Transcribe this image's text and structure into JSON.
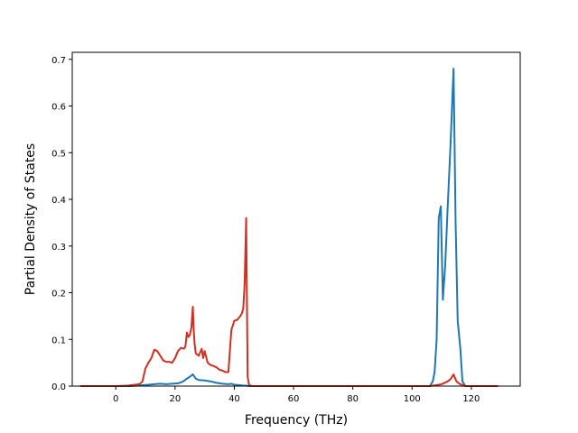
{
  "chart_data": {
    "type": "line",
    "title": "",
    "xlabel": "Frequency (THz)",
    "ylabel": "Partial Density of States",
    "xlim": [
      -14.7,
      136.5
    ],
    "ylim": [
      0,
      0.715
    ],
    "xticks": [
      0,
      20,
      40,
      60,
      80,
      100,
      120
    ],
    "yticks": [
      0.0,
      0.1,
      0.2,
      0.3,
      0.4,
      0.5,
      0.6,
      0.7
    ],
    "xtick_labels": [
      "0",
      "20",
      "40",
      "60",
      "80",
      "100",
      "120"
    ],
    "ytick_labels": [
      "0.0",
      "0.1",
      "0.2",
      "0.3",
      "0.4",
      "0.5",
      "0.6",
      "0.7"
    ],
    "grid": false,
    "legend": "none",
    "series": [
      {
        "color": "#1f77b4",
        "x": [
          -12,
          0,
          5,
          9,
          11,
          13,
          15,
          17,
          19,
          21,
          22,
          23,
          24,
          25,
          26,
          27,
          28,
          30,
          32,
          34,
          36,
          38,
          39,
          40,
          42,
          43,
          44,
          45,
          46,
          60,
          80,
          100,
          106,
          107,
          107.6,
          108.3,
          109,
          109.7,
          110.4,
          111.2,
          112,
          113,
          114,
          114.7,
          115.4,
          116.3,
          117,
          118,
          122,
          129
        ],
        "y": [
          0,
          0,
          0,
          0.002,
          0.003,
          0.004,
          0.005,
          0.004,
          0.005,
          0.006,
          0.008,
          0.011,
          0.016,
          0.02,
          0.025,
          0.016,
          0.013,
          0.012,
          0.01,
          0.007,
          0.005,
          0.004,
          0.005,
          0.003,
          0.002,
          0.001,
          0.001,
          0,
          0,
          0,
          0,
          0,
          0,
          0.01,
          0.03,
          0.1,
          0.36,
          0.385,
          0.185,
          0.26,
          0.38,
          0.52,
          0.68,
          0.35,
          0.14,
          0.08,
          0.01,
          0,
          0,
          0
        ]
      },
      {
        "color": "#d12f1f",
        "x": [
          -12,
          0,
          4,
          8,
          9,
          10,
          11,
          12,
          13,
          14,
          15,
          16,
          17,
          18,
          19,
          20,
          21,
          22,
          23,
          23.5,
          24,
          24.5,
          25,
          25.5,
          26,
          26.3,
          26.6,
          27,
          28,
          29,
          29.5,
          30,
          31,
          32,
          33,
          34,
          35,
          36,
          37,
          37.5,
          38,
          39,
          40,
          41,
          42,
          42.5,
          43,
          43.5,
          44,
          44.5,
          45,
          46,
          60,
          80,
          100,
          106,
          108,
          110,
          112,
          113,
          114,
          115,
          116,
          117,
          118,
          122,
          129
        ],
        "y": [
          0,
          0,
          0.001,
          0.004,
          0.01,
          0.038,
          0.05,
          0.06,
          0.078,
          0.075,
          0.065,
          0.055,
          0.052,
          0.052,
          0.05,
          0.06,
          0.075,
          0.082,
          0.08,
          0.085,
          0.115,
          0.105,
          0.11,
          0.125,
          0.17,
          0.12,
          0.09,
          0.07,
          0.065,
          0.08,
          0.06,
          0.075,
          0.05,
          0.045,
          0.043,
          0.04,
          0.035,
          0.033,
          0.03,
          0.03,
          0.03,
          0.12,
          0.14,
          0.142,
          0.15,
          0.155,
          0.165,
          0.22,
          0.36,
          0.02,
          0.002,
          0,
          0,
          0,
          0,
          0,
          0.002,
          0.004,
          0.01,
          0.015,
          0.025,
          0.01,
          0.005,
          0.002,
          0,
          0,
          0
        ]
      }
    ]
  }
}
